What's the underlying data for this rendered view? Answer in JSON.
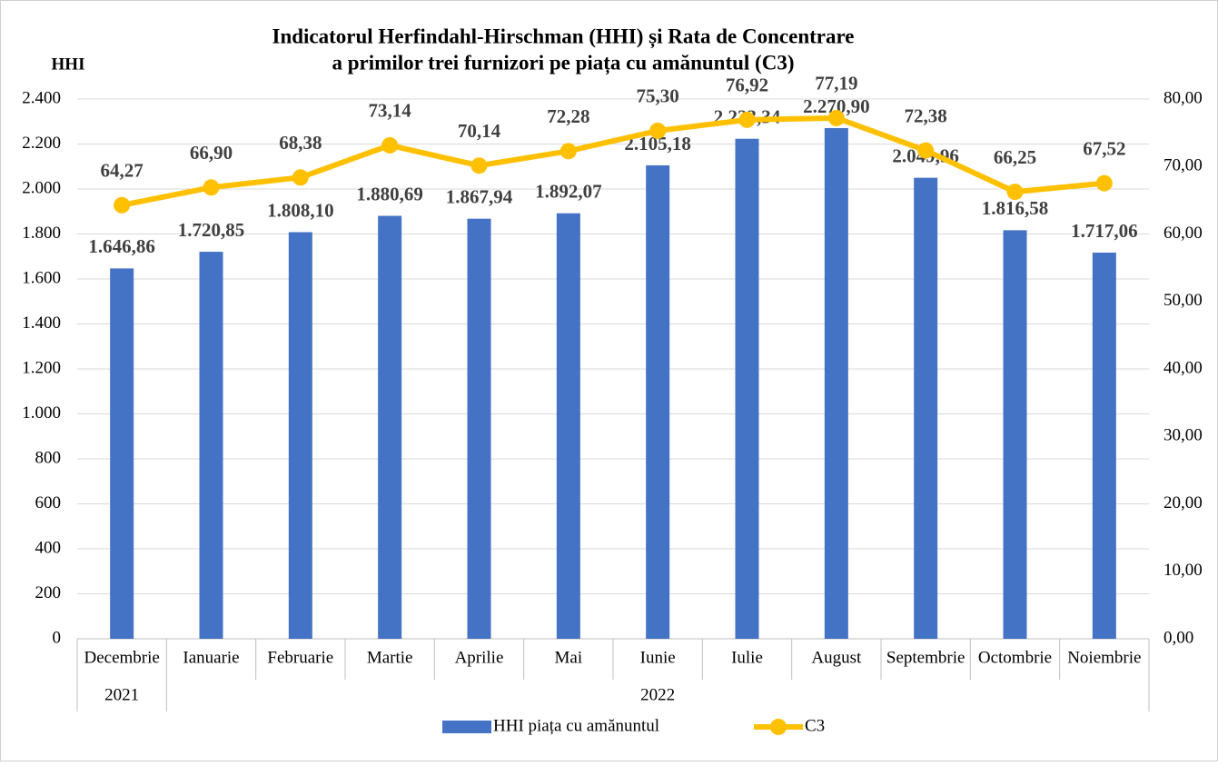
{
  "chart_data": {
    "type": "bar_line",
    "title": [
      "Indicatorul Herfindahl-Hirschman (HHI) și Rata de Concentrare",
      "a primilor trei furnizori pe piața cu amănuntul (C3)"
    ],
    "y_label": "HHI",
    "categories": [
      "Decembrie",
      "Ianuarie",
      "Februarie",
      "Martie",
      "Aprilie",
      "Mai",
      "Iunie",
      "Iulie",
      "August",
      "Septembrie",
      "Octombrie",
      "Noiembrie"
    ],
    "years": [
      "2021",
      "2022",
      "2022",
      "2022",
      "2022",
      "2022",
      "2022",
      "2022",
      "2022",
      "2022",
      "2022",
      "2022"
    ],
    "series": [
      {
        "name": "HHI piața cu amănuntul",
        "type": "bar",
        "color": "#4472c4",
        "values": [
          1646.86,
          1720.85,
          1808.1,
          1880.69,
          1867.94,
          1892.07,
          2105.18,
          2223.34,
          2270.9,
          2049.96,
          1816.58,
          1717.06
        ],
        "value_labels": [
          "1.646,86",
          "1.720,85",
          "1.808,10",
          "1.880,69",
          "1.867,94",
          "1.892,07",
          "2.105,18",
          "2.223,34",
          "2.270,90",
          "2.049,96",
          "1.816,58",
          "1.717,06"
        ]
      },
      {
        "name": "C3",
        "type": "line",
        "axis": "y2",
        "color": "#ffc000",
        "values": [
          64.27,
          66.9,
          68.38,
          73.14,
          70.14,
          72.28,
          75.3,
          76.92,
          77.19,
          72.38,
          66.25,
          67.52
        ],
        "value_labels": [
          "64,27",
          "66,90",
          "68,38",
          "73,14",
          "70,14",
          "72,28",
          "75,30",
          "76,92",
          "77,19",
          "72,38",
          "66,25",
          "67,52"
        ]
      }
    ],
    "ylim": [
      0,
      2400
    ],
    "yticks": [
      0,
      {
        "value": 200,
        "label": "200"
      },
      {
        "value": 400,
        "label": "400"
      },
      {
        "value": 600,
        "label": "600"
      },
      {
        "value": 800,
        "label": "800"
      },
      {
        "value": 1000,
        "label": "1.000"
      },
      {
        "value": 1200,
        "label": "1.200"
      },
      {
        "value": 1400,
        "label": "1.400"
      },
      {
        "value": 1600,
        "label": "1.600"
      },
      {
        "value": 1800,
        "label": "1.800"
      },
      {
        "value": 2000,
        "label": "2.000"
      },
      {
        "value": 2200,
        "label": "2.200"
      },
      {
        "value": 2400,
        "label": "2.400"
      }
    ],
    "y2lim": [
      0,
      80
    ],
    "y2ticks": [
      {
        "value": 0,
        "label": "0,00"
      },
      {
        "value": 10,
        "label": "10,00"
      },
      {
        "value": 20,
        "label": "20,00"
      },
      {
        "value": 30,
        "label": "30,00"
      },
      {
        "value": 40,
        "label": "40,00"
      },
      {
        "value": 50,
        "label": "50,00"
      },
      {
        "value": 60,
        "label": "60,00"
      },
      {
        "value": 70,
        "label": "70,00"
      },
      {
        "value": 80,
        "label": "80,00"
      }
    ],
    "grid": true,
    "legend": "bottom"
  }
}
